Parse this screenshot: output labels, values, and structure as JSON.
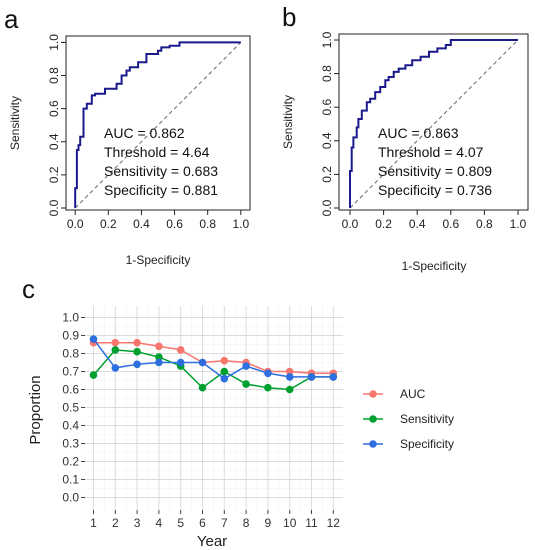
{
  "chart_data": [
    {
      "type": "line",
      "panel_label": "a",
      "xlabel": "1-Specificity",
      "ylabel": "Sensitivity",
      "xlim": [
        0,
        1
      ],
      "ylim": [
        0,
        1
      ],
      "ticks": [
        "0.0",
        "0.2",
        "0.4",
        "0.6",
        "0.8",
        "1.0"
      ],
      "line_color": "#1a1a8c",
      "annotations": [
        "AUC = 0.862",
        "Threshold = 4.64",
        "Sensitivity = 0.683",
        "Specificity =  0.881"
      ],
      "roc_x": [
        0.0,
        0.0,
        0.01,
        0.01,
        0.02,
        0.02,
        0.03,
        0.03,
        0.05,
        0.05,
        0.07,
        0.07,
        0.1,
        0.1,
        0.12,
        0.12,
        0.18,
        0.18,
        0.25,
        0.25,
        0.28,
        0.28,
        0.31,
        0.31,
        0.33,
        0.33,
        0.38,
        0.38,
        0.43,
        0.43,
        0.5,
        0.5,
        0.52,
        0.52,
        0.57,
        0.57,
        0.63,
        0.63,
        1.0
      ],
      "roc_y": [
        0.0,
        0.12,
        0.12,
        0.35,
        0.35,
        0.38,
        0.38,
        0.43,
        0.43,
        0.6,
        0.6,
        0.63,
        0.63,
        0.68,
        0.68,
        0.69,
        0.69,
        0.72,
        0.72,
        0.75,
        0.75,
        0.8,
        0.8,
        0.83,
        0.83,
        0.85,
        0.85,
        0.88,
        0.88,
        0.93,
        0.93,
        0.95,
        0.95,
        0.97,
        0.97,
        0.98,
        0.98,
        1.0,
        1.0
      ]
    },
    {
      "type": "line",
      "panel_label": "b",
      "xlabel": "1-Specificity",
      "ylabel": "Sensitivity",
      "xlim": [
        0,
        1
      ],
      "ylim": [
        0,
        1
      ],
      "ticks": [
        "0.0",
        "0.2",
        "0.4",
        "0.6",
        "0.8",
        "1.0"
      ],
      "line_color": "#1a1a8c",
      "annotations": [
        "AUC = 0.863",
        "Threshold = 4.07",
        "Sensitivity = 0.809",
        "Specificity =  0.736"
      ],
      "roc_x": [
        0.0,
        0.0,
        0.01,
        0.01,
        0.02,
        0.02,
        0.04,
        0.04,
        0.05,
        0.05,
        0.07,
        0.07,
        0.1,
        0.1,
        0.12,
        0.12,
        0.15,
        0.15,
        0.18,
        0.18,
        0.21,
        0.21,
        0.23,
        0.23,
        0.26,
        0.26,
        0.29,
        0.29,
        0.33,
        0.33,
        0.37,
        0.37,
        0.42,
        0.42,
        0.47,
        0.47,
        0.52,
        0.52,
        0.57,
        0.57,
        0.6,
        0.6,
        1.0
      ],
      "roc_y": [
        0.0,
        0.22,
        0.22,
        0.36,
        0.36,
        0.42,
        0.42,
        0.48,
        0.48,
        0.53,
        0.53,
        0.58,
        0.58,
        0.63,
        0.63,
        0.65,
        0.65,
        0.69,
        0.69,
        0.72,
        0.72,
        0.76,
        0.76,
        0.78,
        0.78,
        0.81,
        0.81,
        0.83,
        0.83,
        0.85,
        0.85,
        0.88,
        0.88,
        0.9,
        0.9,
        0.93,
        0.93,
        0.95,
        0.95,
        0.97,
        0.97,
        1.0,
        1.0
      ]
    },
    {
      "type": "line",
      "panel_label": "c",
      "xlabel": "Year",
      "ylabel": "Proportion",
      "x": [
        1,
        2,
        3,
        4,
        5,
        6,
        7,
        8,
        9,
        10,
        11,
        12
      ],
      "x_ticks": [
        "1",
        "2",
        "3",
        "4",
        "5",
        "6",
        "7",
        "8",
        "9",
        "10",
        "11",
        "12"
      ],
      "ylim": [
        0,
        1
      ],
      "y_ticks": [
        "0.0",
        "0.1",
        "0.2",
        "0.3",
        "0.4",
        "0.5",
        "0.6",
        "0.7",
        "0.8",
        "0.9",
        "1.0"
      ],
      "grid": true,
      "legend_position": "right",
      "series": [
        {
          "name": "AUC",
          "color": "#f8766d",
          "values": [
            0.86,
            0.86,
            0.86,
            0.84,
            0.82,
            0.75,
            0.76,
            0.75,
            0.7,
            0.7,
            0.69,
            0.69
          ]
        },
        {
          "name": "Sensitivity",
          "color": "#00a030",
          "values": [
            0.68,
            0.82,
            0.81,
            0.78,
            0.73,
            0.61,
            0.7,
            0.63,
            0.61,
            0.6,
            0.67,
            0.67
          ]
        },
        {
          "name": "Specificity",
          "color": "#2e6fe0",
          "values": [
            0.88,
            0.72,
            0.74,
            0.75,
            0.75,
            0.75,
            0.66,
            0.73,
            0.69,
            0.67,
            0.67,
            0.67
          ]
        }
      ]
    }
  ]
}
